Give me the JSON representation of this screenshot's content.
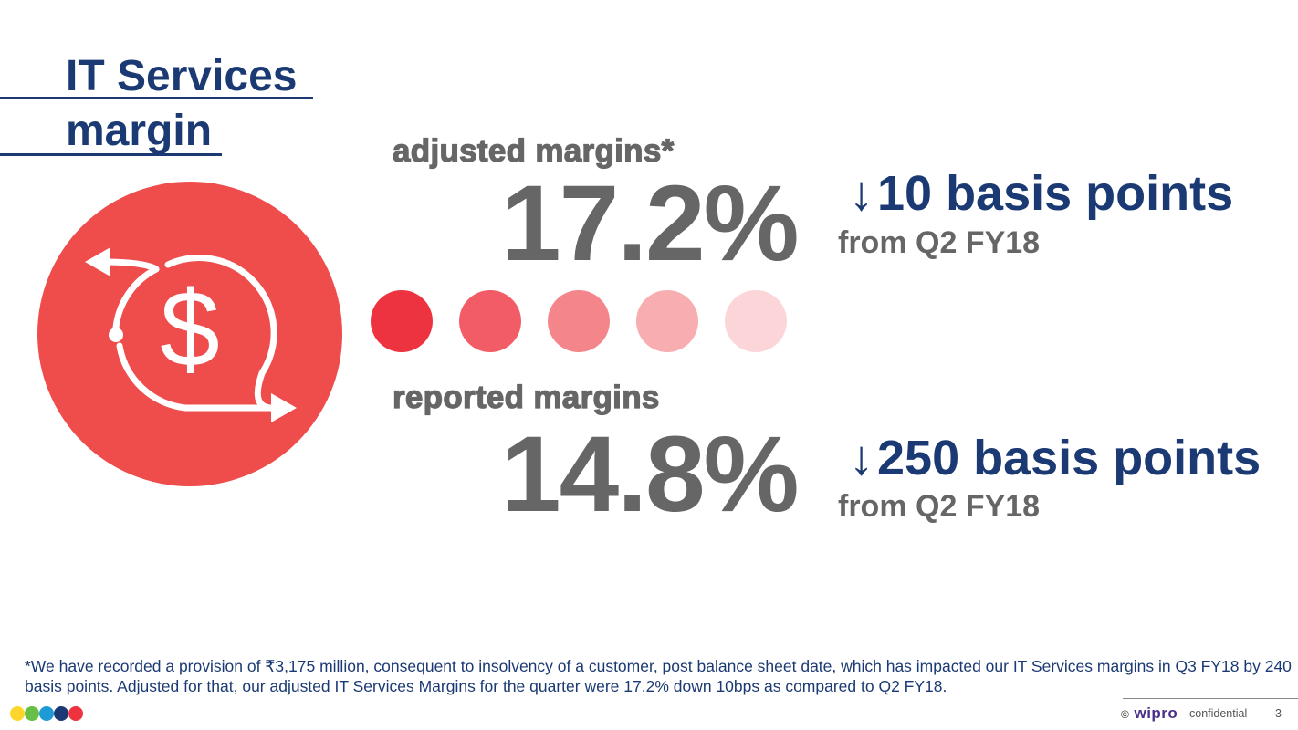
{
  "title": {
    "line1": "IT Services",
    "line2": "margin"
  },
  "icon": {
    "name": "dollar-cycle-icon",
    "color": "#ef4c4c"
  },
  "adjusted": {
    "label": "adjusted margins*",
    "value": "17.2%",
    "delta_arrow": "↓",
    "delta_text": "10 basis points",
    "from_text": "from Q2 FY18"
  },
  "reported": {
    "label": "reported margins",
    "value": "14.8%",
    "delta_arrow": "↓",
    "delta_text": "250 basis points",
    "from_text": "from Q2 FY18"
  },
  "separator_dots": [
    "#ee3340",
    "#f25c67",
    "#f4868b",
    "#f8adb1",
    "#fcd5d8"
  ],
  "footnote": "*We have recorded a provision of ₹3,175 million, consequent to insolvency of a customer, post balance sheet date, which has impacted our IT Services margins in Q3 FY18 by 240 basis points. Adjusted for that, our adjusted IT Services Margins for the quarter were 17.2% down 10bps as compared to Q2 FY18.",
  "footer": {
    "brand_dots": [
      "#fdd52b",
      "#67bf45",
      "#1e9bd7",
      "#1b3a73",
      "#ee3340"
    ],
    "copyright": "©",
    "brand": "wipro",
    "confidential": "confidential",
    "page_number": "3"
  }
}
